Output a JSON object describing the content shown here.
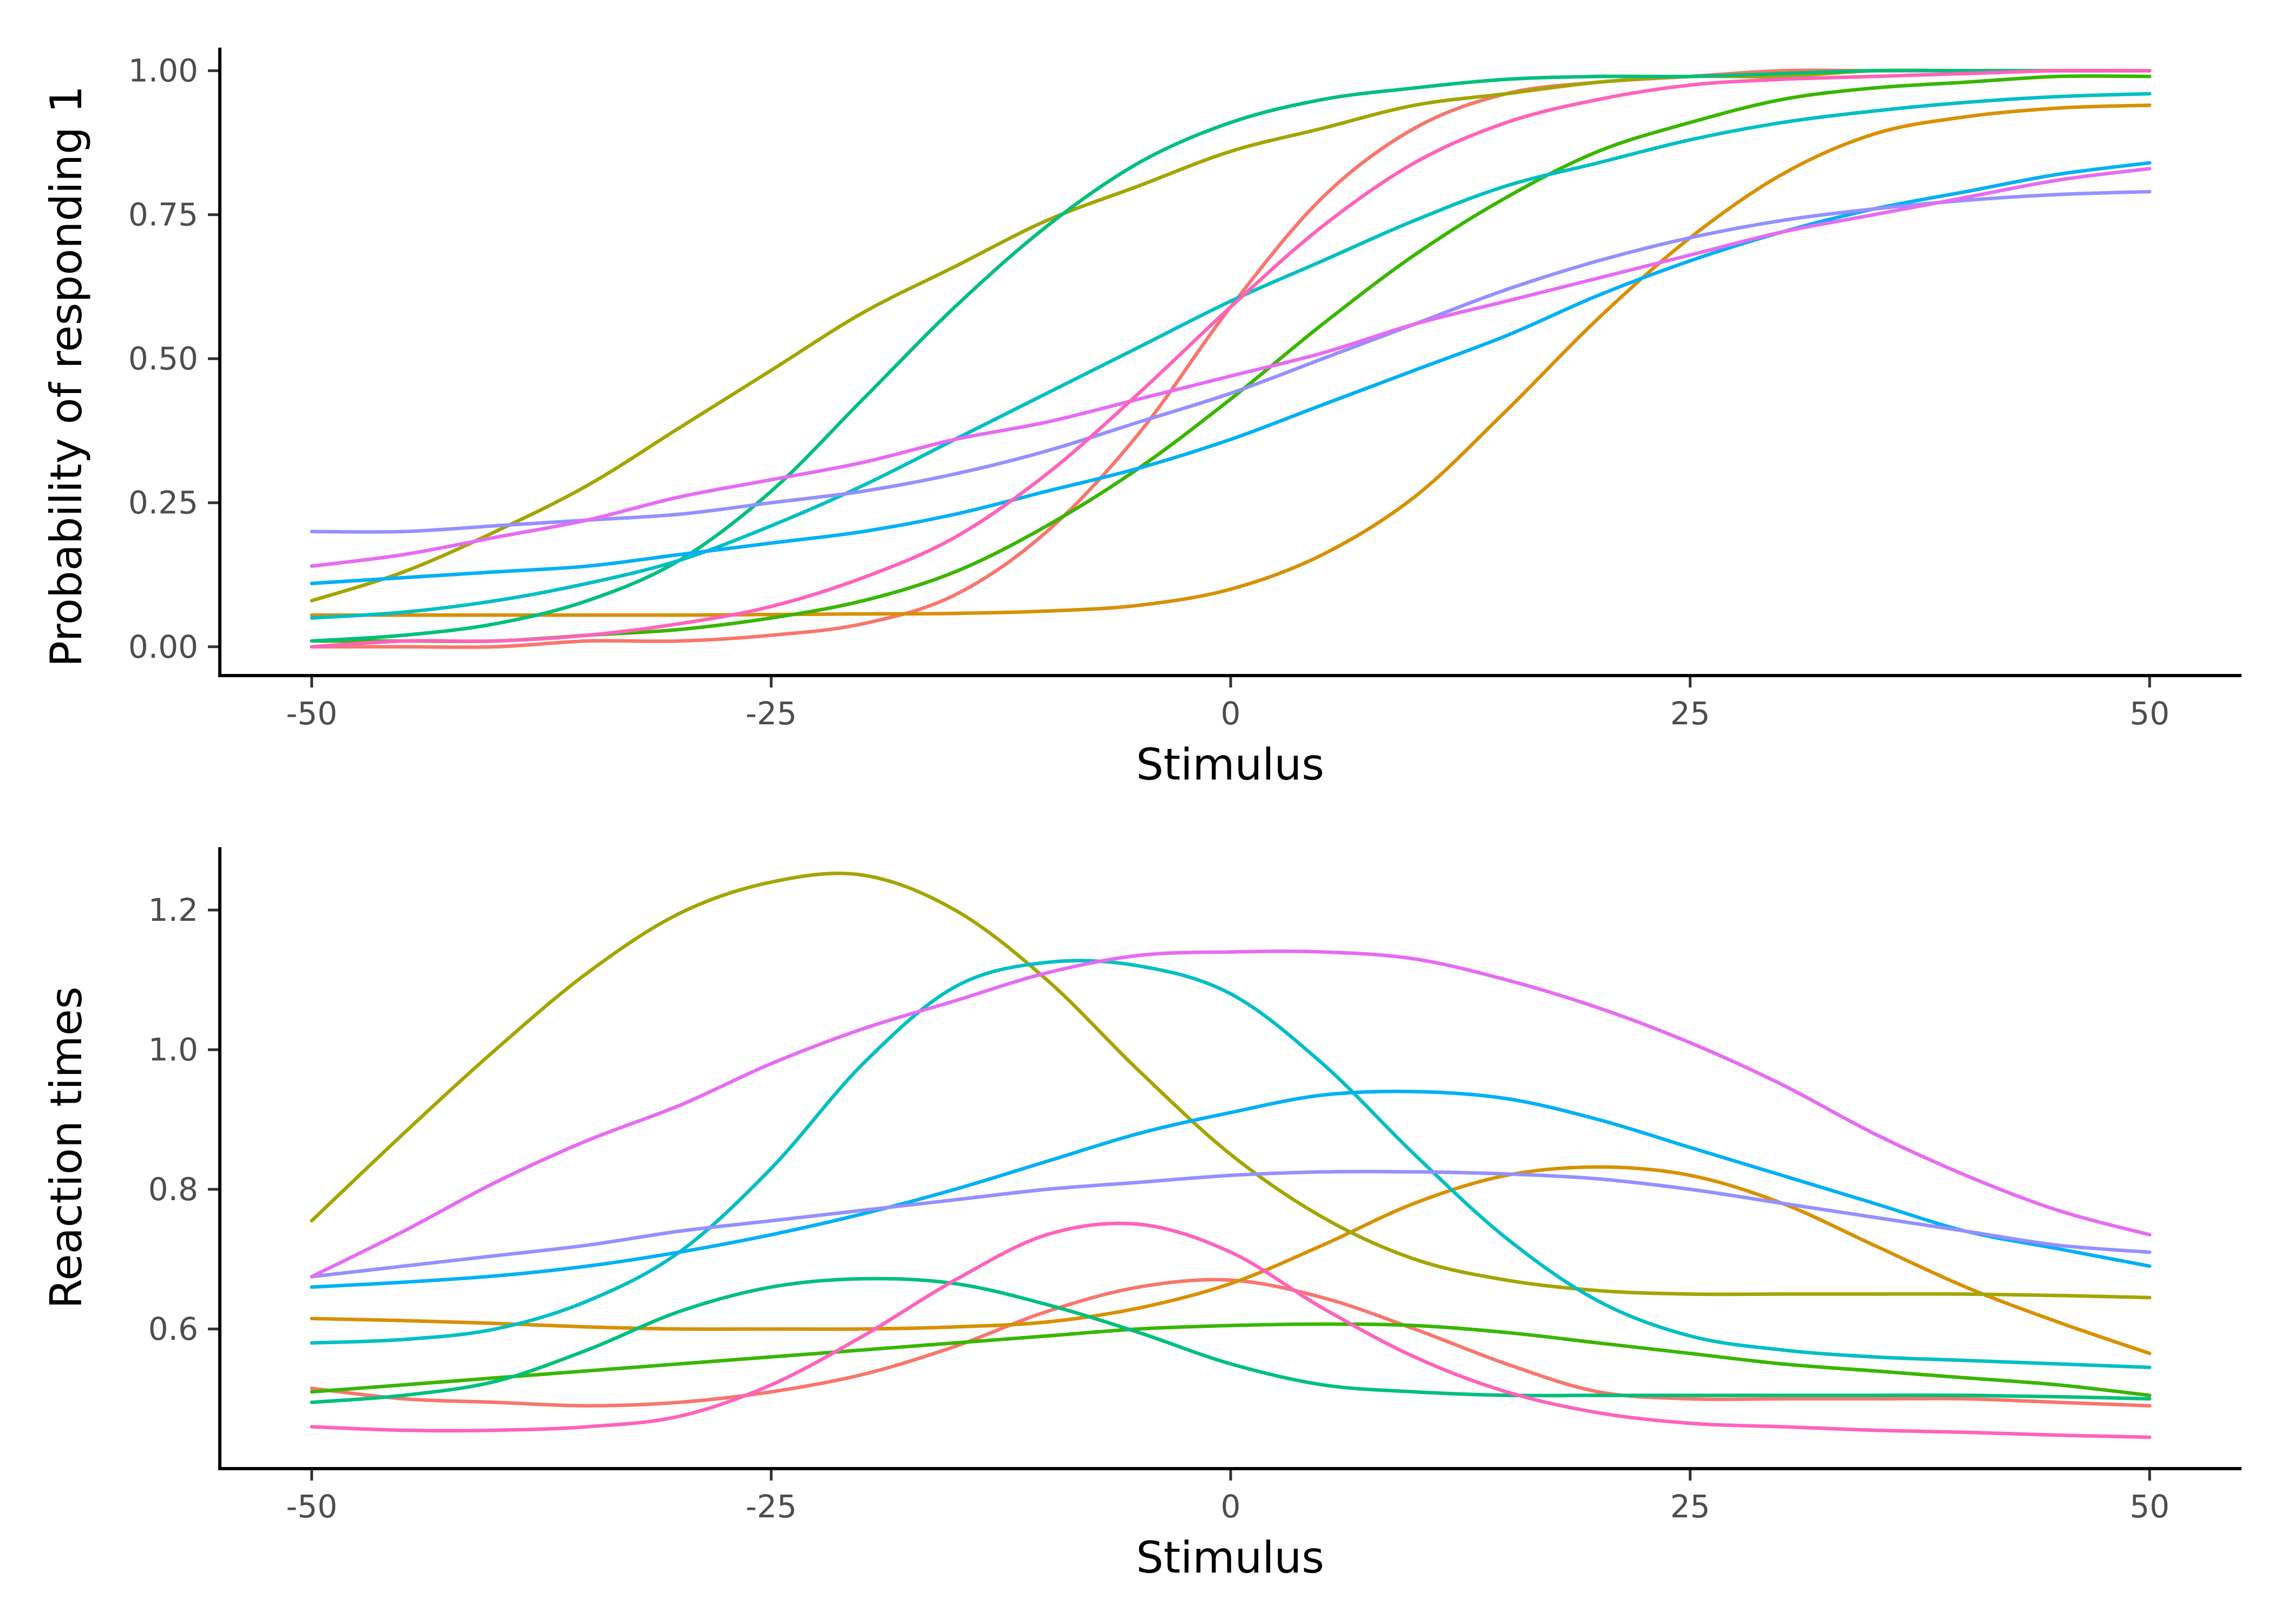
{
  "chart_data": [
    {
      "type": "line",
      "xlabel": "Stimulus",
      "ylabel": "Probability of responding 1",
      "xlim": [
        -55,
        55
      ],
      "ylim": [
        -0.05,
        1.04
      ],
      "xticks": [
        -50,
        -25,
        0,
        25,
        50
      ],
      "xtick_labels": [
        "-50",
        "-25",
        "0",
        "25",
        "50"
      ],
      "yticks": [
        0,
        0.25,
        0.5,
        0.75,
        1
      ],
      "ytick_labels": [
        "0.00",
        "0.25",
        "0.50",
        "0.75",
        "1.00"
      ],
      "grid": false,
      "legend": "none",
      "x": [
        -50,
        -45,
        -40,
        -35,
        -30,
        -25,
        -20,
        -15,
        -10,
        -5,
        0,
        5,
        10,
        15,
        20,
        25,
        30,
        35,
        40,
        45,
        50
      ],
      "series": [
        {
          "color": "#F8766D",
          "values": [
            0.0,
            0.0,
            0.0,
            0.01,
            0.01,
            0.02,
            0.04,
            0.09,
            0.2,
            0.37,
            0.59,
            0.78,
            0.9,
            0.96,
            0.98,
            0.99,
            1.0,
            1.0,
            1.0,
            1.0,
            1.0
          ]
        },
        {
          "color": "#D89000",
          "values": [
            0.055,
            0.055,
            0.055,
            0.055,
            0.055,
            0.056,
            0.057,
            0.058,
            0.062,
            0.072,
            0.1,
            0.16,
            0.26,
            0.41,
            0.57,
            0.71,
            0.82,
            0.89,
            0.92,
            0.935,
            0.94
          ]
        },
        {
          "color": "#A3A500",
          "values": [
            0.08,
            0.13,
            0.2,
            0.28,
            0.38,
            0.48,
            0.58,
            0.66,
            0.74,
            0.8,
            0.86,
            0.9,
            0.94,
            0.96,
            0.98,
            0.99,
            0.99,
            1.0,
            1.0,
            1.0,
            1.0
          ]
        },
        {
          "color": "#39B600",
          "values": [
            0.01,
            0.01,
            0.01,
            0.02,
            0.03,
            0.05,
            0.08,
            0.13,
            0.21,
            0.31,
            0.43,
            0.56,
            0.68,
            0.78,
            0.86,
            0.91,
            0.95,
            0.97,
            0.98,
            0.99,
            0.99
          ]
        },
        {
          "color": "#00BF7D",
          "values": [
            0.01,
            0.02,
            0.04,
            0.08,
            0.15,
            0.27,
            0.43,
            0.59,
            0.73,
            0.84,
            0.91,
            0.95,
            0.97,
            0.985,
            0.99,
            0.99,
            0.995,
            1.0,
            1.0,
            1.0,
            1.0
          ]
        },
        {
          "color": "#00BFC4",
          "values": [
            0.05,
            0.06,
            0.08,
            0.11,
            0.15,
            0.21,
            0.28,
            0.36,
            0.44,
            0.52,
            0.6,
            0.67,
            0.74,
            0.8,
            0.84,
            0.88,
            0.91,
            0.93,
            0.945,
            0.955,
            0.96
          ]
        },
        {
          "color": "#00B0F6",
          "values": [
            0.11,
            0.12,
            0.13,
            0.14,
            0.16,
            0.18,
            0.2,
            0.23,
            0.27,
            0.31,
            0.36,
            0.42,
            0.48,
            0.54,
            0.61,
            0.67,
            0.72,
            0.76,
            0.79,
            0.82,
            0.84
          ]
        },
        {
          "color": "#9590FF",
          "values": [
            0.2,
            0.2,
            0.21,
            0.22,
            0.23,
            0.25,
            0.27,
            0.3,
            0.34,
            0.39,
            0.44,
            0.5,
            0.56,
            0.62,
            0.67,
            0.71,
            0.74,
            0.76,
            0.775,
            0.785,
            0.79
          ]
        },
        {
          "color": "#E76BF3",
          "values": [
            0.14,
            0.16,
            0.19,
            0.22,
            0.26,
            0.29,
            0.32,
            0.36,
            0.39,
            0.43,
            0.47,
            0.51,
            0.56,
            0.6,
            0.64,
            0.68,
            0.72,
            0.75,
            0.78,
            0.81,
            0.83
          ]
        },
        {
          "color": "#FF62BC",
          "values": [
            0.0,
            0.01,
            0.01,
            0.02,
            0.04,
            0.07,
            0.12,
            0.19,
            0.3,
            0.44,
            0.59,
            0.73,
            0.84,
            0.91,
            0.95,
            0.975,
            0.985,
            0.99,
            0.995,
            1.0,
            1.0
          ]
        }
      ]
    },
    {
      "type": "line",
      "xlabel": "Stimulus",
      "ylabel": "Reaction times",
      "xlim": [
        -55,
        55
      ],
      "ylim": [
        0.4,
        1.29
      ],
      "xticks": [
        -50,
        -25,
        0,
        25,
        50
      ],
      "xtick_labels": [
        "-50",
        "-25",
        "0",
        "25",
        "50"
      ],
      "yticks": [
        0.6,
        0.8,
        1.0,
        1.2
      ],
      "ytick_labels": [
        "0.6",
        "0.8",
        "1.0",
        "1.2"
      ],
      "grid": false,
      "legend": "none",
      "x": [
        -50,
        -45,
        -40,
        -35,
        -30,
        -25,
        -20,
        -15,
        -10,
        -5,
        0,
        5,
        10,
        15,
        20,
        25,
        30,
        35,
        40,
        45,
        50
      ],
      "series": [
        {
          "color": "#F8766D",
          "values": [
            0.515,
            0.5,
            0.495,
            0.49,
            0.495,
            0.51,
            0.535,
            0.575,
            0.625,
            0.66,
            0.67,
            0.645,
            0.6,
            0.55,
            0.51,
            0.5,
            0.5,
            0.5,
            0.5,
            0.495,
            0.49
          ]
        },
        {
          "color": "#D89000",
          "values": [
            0.615,
            0.612,
            0.608,
            0.603,
            0.6,
            0.6,
            0.6,
            0.603,
            0.61,
            0.63,
            0.665,
            0.72,
            0.78,
            0.82,
            0.832,
            0.82,
            0.78,
            0.72,
            0.66,
            0.61,
            0.565
          ]
        },
        {
          "color": "#A3A500",
          "values": [
            0.755,
            0.88,
            1.0,
            1.11,
            1.195,
            1.24,
            1.25,
            1.2,
            1.1,
            0.97,
            0.85,
            0.76,
            0.7,
            0.67,
            0.655,
            0.65,
            0.65,
            0.65,
            0.65,
            0.648,
            0.645
          ]
        },
        {
          "color": "#39B600",
          "values": [
            0.51,
            0.52,
            0.53,
            0.54,
            0.55,
            0.56,
            0.57,
            0.58,
            0.59,
            0.6,
            0.605,
            0.607,
            0.605,
            0.595,
            0.58,
            0.565,
            0.55,
            0.54,
            0.53,
            0.52,
            0.505
          ]
        },
        {
          "color": "#00BF7D",
          "values": [
            0.495,
            0.505,
            0.525,
            0.57,
            0.625,
            0.66,
            0.672,
            0.665,
            0.635,
            0.595,
            0.55,
            0.52,
            0.51,
            0.505,
            0.505,
            0.505,
            0.505,
            0.505,
            0.505,
            0.503,
            0.5
          ]
        },
        {
          "color": "#00BFC4",
          "values": [
            0.58,
            0.585,
            0.6,
            0.64,
            0.71,
            0.83,
            0.98,
            1.09,
            1.125,
            1.12,
            1.08,
            0.98,
            0.85,
            0.73,
            0.64,
            0.59,
            0.57,
            0.56,
            0.555,
            0.55,
            0.545
          ]
        },
        {
          "color": "#00B0F6",
          "values": [
            0.66,
            0.667,
            0.676,
            0.69,
            0.71,
            0.735,
            0.765,
            0.8,
            0.84,
            0.88,
            0.91,
            0.935,
            0.94,
            0.93,
            0.9,
            0.86,
            0.82,
            0.78,
            0.74,
            0.715,
            0.69
          ]
        },
        {
          "color": "#9590FF",
          "values": [
            0.675,
            0.69,
            0.705,
            0.72,
            0.74,
            0.755,
            0.77,
            0.785,
            0.8,
            0.81,
            0.82,
            0.825,
            0.825,
            0.822,
            0.815,
            0.8,
            0.78,
            0.76,
            0.74,
            0.72,
            0.71
          ]
        },
        {
          "color": "#E76BF3",
          "values": [
            0.675,
            0.74,
            0.81,
            0.87,
            0.92,
            0.98,
            1.03,
            1.07,
            1.11,
            1.135,
            1.14,
            1.14,
            1.13,
            1.1,
            1.06,
            1.01,
            0.95,
            0.88,
            0.82,
            0.77,
            0.735
          ]
        },
        {
          "color": "#FF62BC",
          "values": [
            0.46,
            0.455,
            0.455,
            0.46,
            0.475,
            0.52,
            0.59,
            0.67,
            0.735,
            0.75,
            0.71,
            0.63,
            0.56,
            0.51,
            0.48,
            0.465,
            0.46,
            0.455,
            0.452,
            0.448,
            0.445
          ]
        }
      ]
    }
  ]
}
